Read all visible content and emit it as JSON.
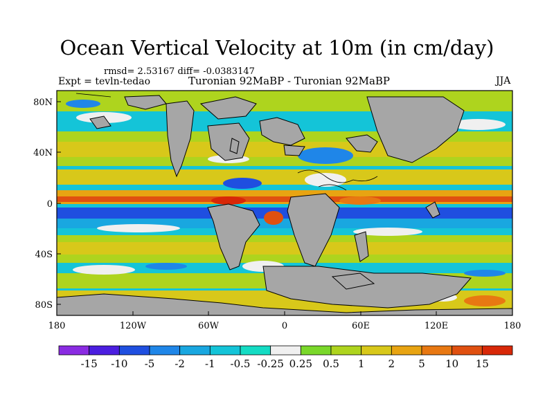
{
  "title": "Ocean Vertical Velocity at 10m (in cm/day)",
  "stats": "rmsd= 2.53167 diff= -0.0383147",
  "experiment": "Expt = tevln-tedao",
  "subtitle": "Turonian  92MaBP - Turonian  92MaBP",
  "season": "JJA",
  "map": {
    "lat_labels": [
      "80N",
      "40N",
      "0",
      "40S",
      "80S"
    ],
    "lon_labels": [
      "180",
      "120W",
      "60W",
      "0",
      "60E",
      "120E",
      "180"
    ],
    "land_color": "#a6a6a6"
  },
  "colorbar": {
    "labels": [
      "-15",
      "-10",
      "-5",
      "-2",
      "-1",
      "-0.5",
      "-0.25",
      "0.25",
      "0.5",
      "1",
      "2",
      "5",
      "10",
      "15"
    ],
    "colors": [
      "#8a2be2",
      "#4b1ee0",
      "#1f4fe0",
      "#1f86e8",
      "#19a7e0",
      "#14c4d8",
      "#14dcc4",
      "#f0f0f0",
      "#7ad82a",
      "#aed41e",
      "#d8c81a",
      "#e8a412",
      "#e87812",
      "#e05010",
      "#d82808"
    ]
  }
}
